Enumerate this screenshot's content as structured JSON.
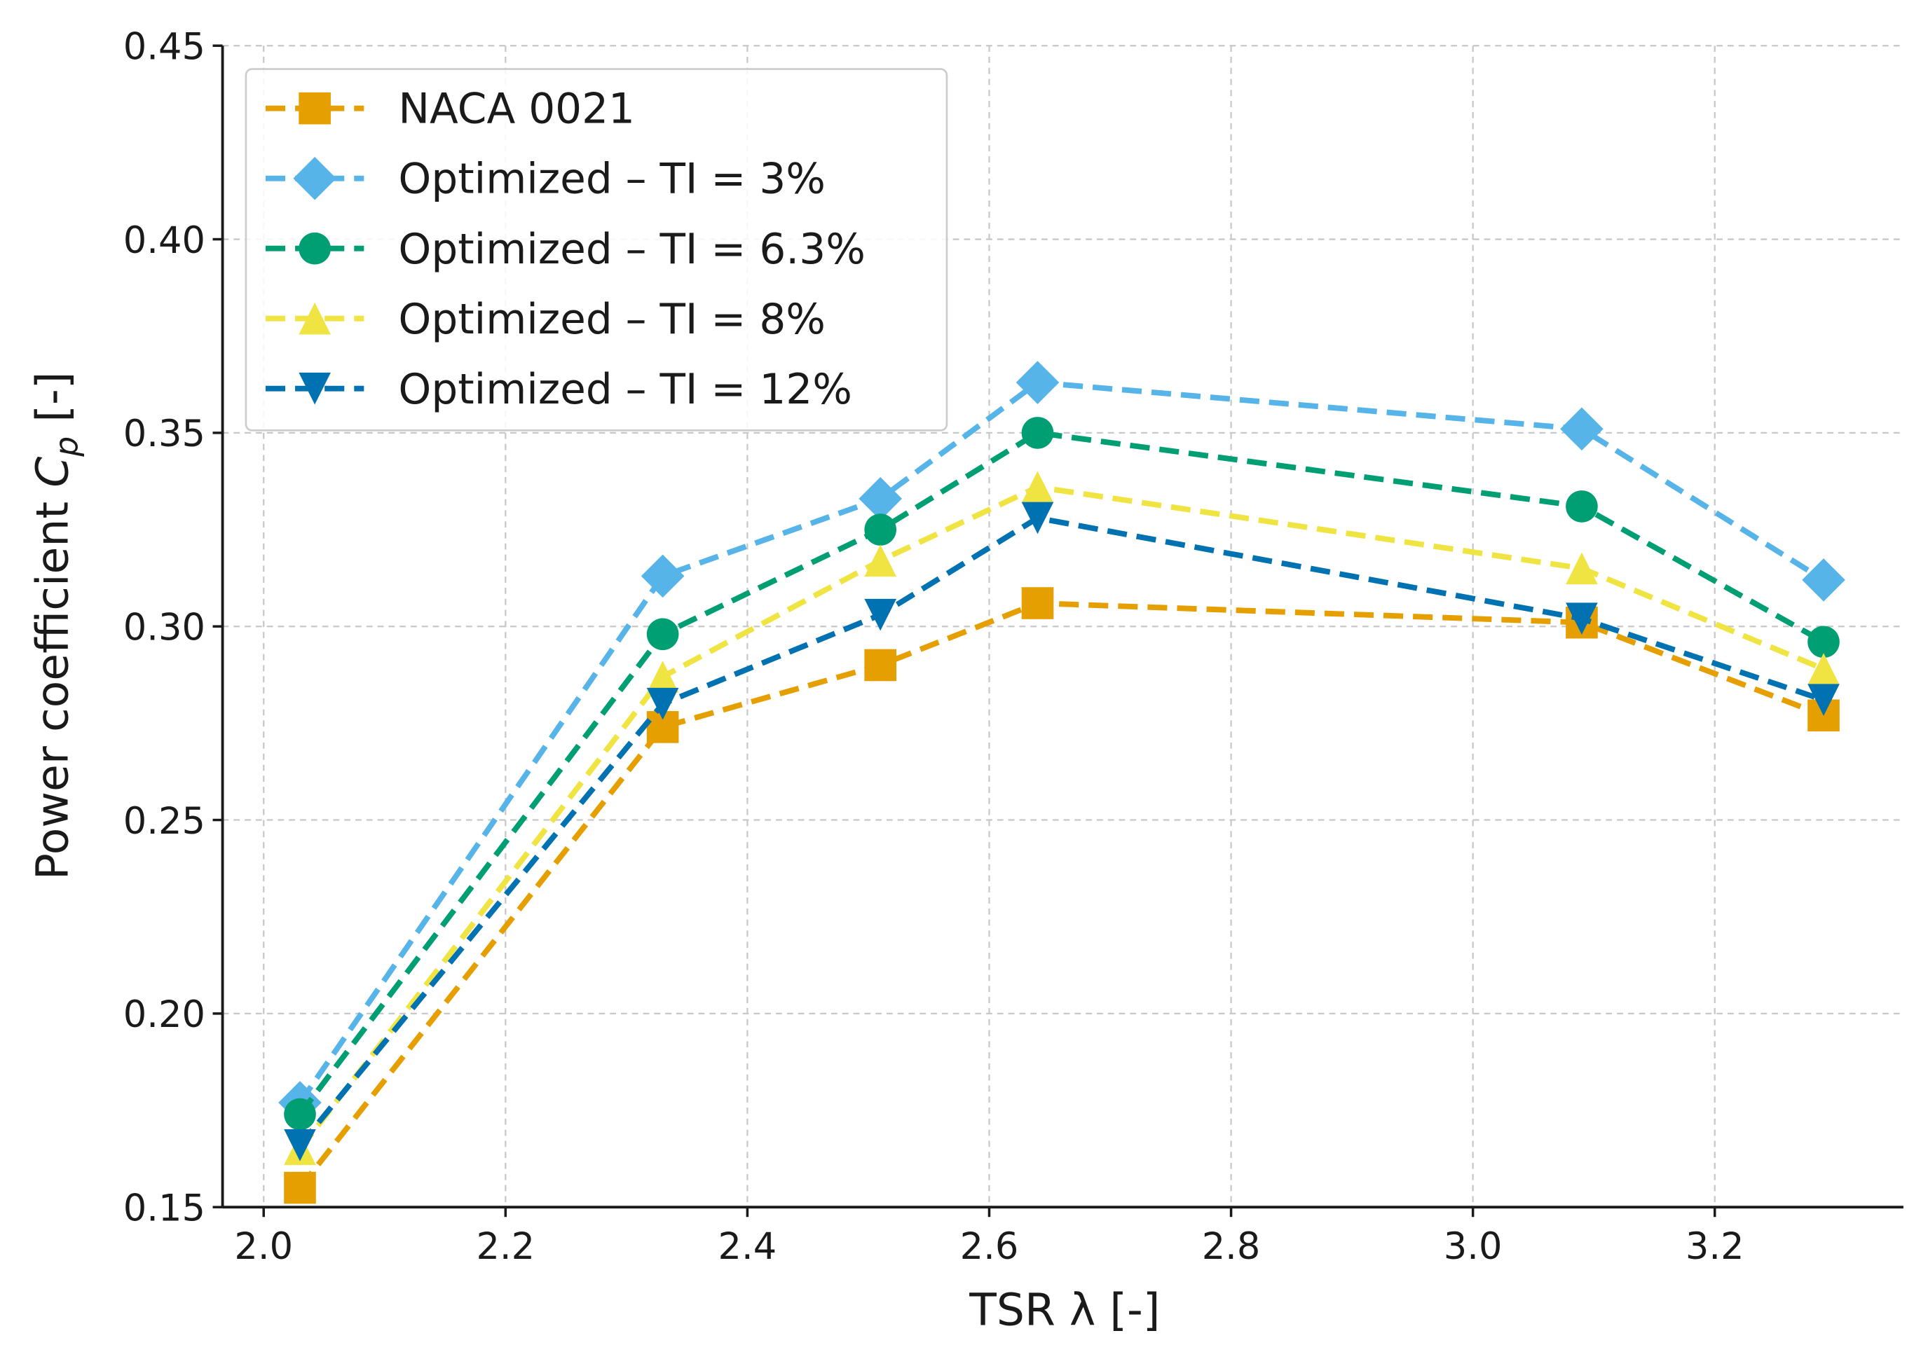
{
  "chart_data": {
    "type": "line",
    "title": "",
    "xlabel": "TSR λ [-]",
    "ylabel_main": "Power coefficient ",
    "ylabel_symbol": "C",
    "ylabel_subscript": "p",
    "ylabel_suffix": " [-]",
    "xlim": [
      1.966,
      3.356
    ],
    "ylim": [
      0.15,
      0.45
    ],
    "xticks": [
      2.0,
      2.2,
      2.4,
      2.6,
      2.8,
      3.0,
      3.2
    ],
    "xtick_labels": [
      "2.0",
      "2.2",
      "2.4",
      "2.6",
      "2.8",
      "3.0",
      "3.2"
    ],
    "yticks": [
      0.15,
      0.2,
      0.25,
      0.3,
      0.35,
      0.4,
      0.45
    ],
    "ytick_labels": [
      "0.15",
      "0.20",
      "0.25",
      "0.30",
      "0.35",
      "0.40",
      "0.45"
    ],
    "grid": true,
    "legend_position": "top-left",
    "x": [
      2.03,
      2.33,
      2.51,
      2.64,
      3.09,
      3.29
    ],
    "series": [
      {
        "name": "NACA 0021",
        "color": "#E69F00",
        "marker": "square",
        "values": [
          0.155,
          0.274,
          0.29,
          0.306,
          0.301,
          0.277
        ]
      },
      {
        "name": "Optimized – TI = 3%",
        "color": "#56B4E9",
        "marker": "diamond",
        "values": [
          0.177,
          0.313,
          0.333,
          0.363,
          0.351,
          0.312
        ]
      },
      {
        "name": "Optimized – TI = 6.3%",
        "color": "#009E73",
        "marker": "circle",
        "values": [
          0.174,
          0.298,
          0.325,
          0.35,
          0.331,
          0.296
        ]
      },
      {
        "name": "Optimized – TI = 8%",
        "color": "#F0E442",
        "marker": "triangle-up",
        "values": [
          0.165,
          0.287,
          0.317,
          0.336,
          0.315,
          0.289
        ]
      },
      {
        "name": "Optimized – TI = 12%",
        "color": "#0072B2",
        "marker": "triangle-down",
        "values": [
          0.166,
          0.28,
          0.303,
          0.328,
          0.302,
          0.281
        ]
      }
    ]
  }
}
